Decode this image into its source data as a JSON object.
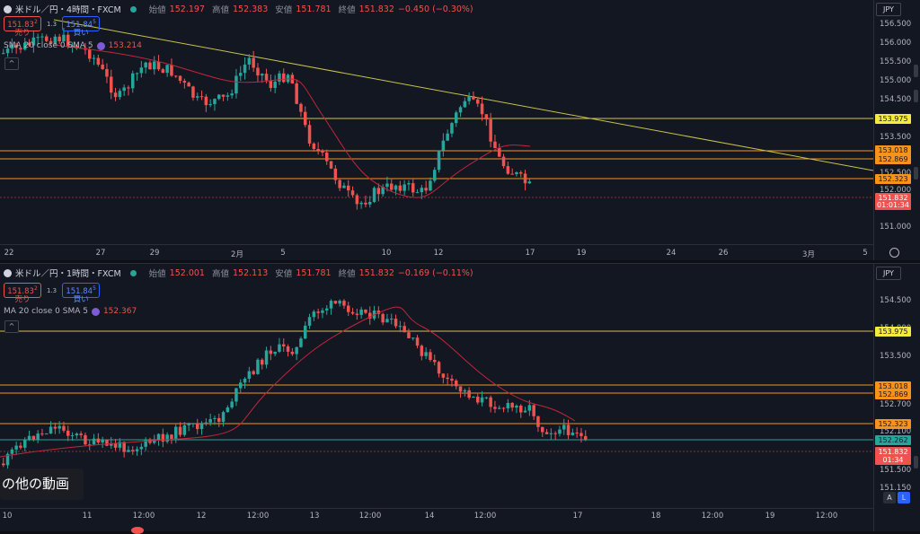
{
  "top": {
    "symbol": "米ドル／円・4時間・FXCM",
    "open_label": "始値",
    "open": "152.197",
    "high_label": "高値",
    "high": "152.383",
    "low_label": "安値",
    "low": "151.781",
    "close_label": "終値",
    "close": "151.832",
    "change": "−0.450 (−0.30%)",
    "sell_price": "151.83",
    "sell_sup": "2",
    "sell_label": "売り",
    "spread": "1.3",
    "buy_price": "151.84",
    "buy_sup": "5",
    "buy_label": "買い",
    "indicator": "SMA 20 close 0 SMA 5",
    "indicator_value": "153.214",
    "currency": "JPY",
    "price_ticks": [
      "156.500",
      "156.000",
      "155.500",
      "155.000",
      "154.500",
      "154.000",
      "153.500",
      "153.000",
      "152.500",
      "152.000",
      "151.500",
      "151.000"
    ],
    "price_labels": [
      {
        "text": "153.975",
        "bg": "#f5eb3d",
        "fg": "#131722"
      },
      {
        "text": "153.018",
        "bg": "#f7931a",
        "fg": "#131722"
      },
      {
        "text": "152.869",
        "bg": "#f7931a",
        "fg": "#131722"
      },
      {
        "text": "152.323",
        "bg": "#f7931a",
        "fg": "#131722"
      },
      {
        "text": "151.832",
        "bg": "#ef5350",
        "fg": "#ffffff"
      },
      {
        "text": "01:01:34",
        "bg": "#ef5350",
        "fg": "#ffffff"
      }
    ],
    "x_ticks": [
      "22",
      "27",
      "29",
      "2月",
      "5",
      "10",
      "12",
      "17",
      "19",
      "24",
      "26",
      "3月",
      "5"
    ]
  },
  "bottom": {
    "symbol": "米ドル／円・1時間・FXCM",
    "open_label": "始値",
    "open": "152.001",
    "high_label": "高値",
    "high": "152.113",
    "low_label": "安値",
    "low": "151.781",
    "close_label": "終値",
    "close": "151.832",
    "change": "−0.169 (−0.11%)",
    "sell_price": "151.83",
    "sell_sup": "2",
    "sell_label": "売り",
    "spread": "1.3",
    "buy_price": "151.84",
    "buy_sup": "5",
    "buy_label": "買い",
    "indicator": "MA 20 close 0 SMA 5",
    "indicator_value": "152.367",
    "currency": "JPY",
    "price_ticks": [
      "154.500",
      "154.000",
      "153.500",
      "152.700",
      "152.100",
      "151.500",
      "151.150"
    ],
    "price_labels": [
      {
        "text": "153.975",
        "bg": "#f5eb3d",
        "fg": "#131722"
      },
      {
        "text": "153.018",
        "bg": "#f7931a",
        "fg": "#131722"
      },
      {
        "text": "152.869",
        "bg": "#f7931a",
        "fg": "#131722"
      },
      {
        "text": "152.323",
        "bg": "#f7931a",
        "fg": "#131722"
      },
      {
        "text": "152.262",
        "bg": "#26a69a",
        "fg": "#131722"
      },
      {
        "text": "151.832",
        "bg": "#ef5350",
        "fg": "#ffffff"
      },
      {
        "text": "01:34",
        "bg": "#ef5350",
        "fg": "#ffffff"
      }
    ],
    "x_ticks": [
      "10",
      "11",
      "12:00",
      "12",
      "12:00",
      "13",
      "12:00",
      "14",
      "12:00",
      "17",
      "18",
      "12:00",
      "19",
      "12:00"
    ],
    "auto_label": "A",
    "log_label": "L"
  },
  "overlay": {
    "video_text": "の他の動画"
  },
  "colors": {
    "bull": "#26a69a",
    "bear": "#ef5350",
    "sma": "#c2253b",
    "trend": "#c8c34a",
    "hline_yellow": "#d4c24a",
    "hline_orange": "#f7931a",
    "hline_green": "#26a69a"
  }
}
